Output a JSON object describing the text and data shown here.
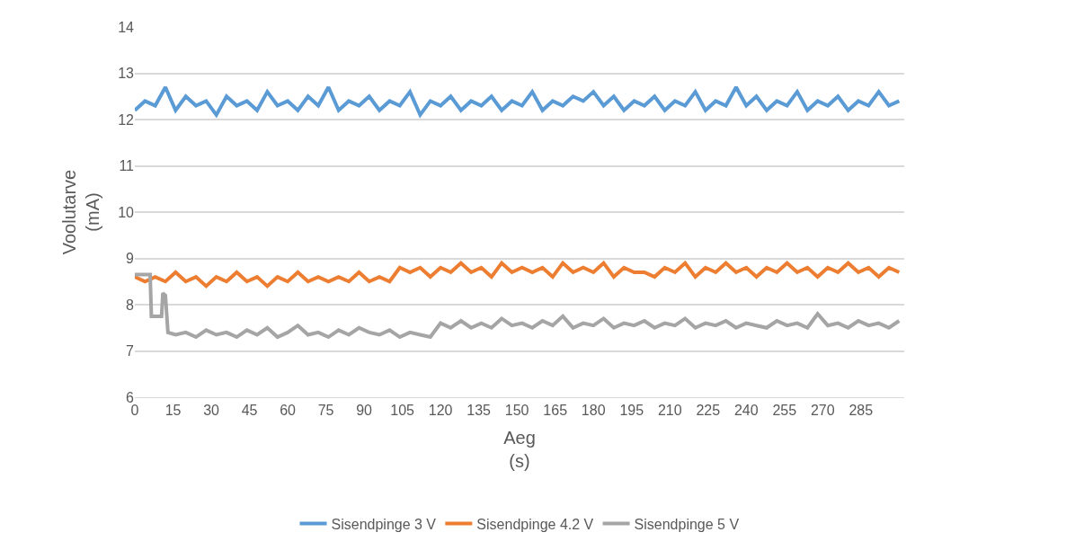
{
  "chart_data": {
    "type": "line",
    "xlabel": "Aeg\n(s)",
    "ylabel": "Voolutarve\n(mA)",
    "x": [
      0,
      4,
      8,
      12,
      16,
      20,
      24,
      28,
      32,
      36,
      40,
      44,
      48,
      52,
      56,
      60,
      64,
      68,
      72,
      76,
      80,
      84,
      88,
      92,
      96,
      100,
      104,
      108,
      112,
      116,
      120,
      124,
      128,
      132,
      136,
      140,
      144,
      148,
      152,
      156,
      160,
      164,
      168,
      172,
      176,
      180,
      184,
      188,
      192,
      196,
      200,
      204,
      208,
      212,
      216,
      220,
      224,
      228,
      232,
      236,
      240,
      244,
      248,
      252,
      256,
      260,
      264,
      268,
      272,
      276,
      280,
      284,
      288,
      292,
      296,
      300
    ],
    "xlim": [
      0,
      302
    ],
    "xticks": [
      0,
      15,
      30,
      45,
      60,
      75,
      90,
      105,
      120,
      135,
      150,
      165,
      180,
      195,
      210,
      225,
      240,
      255,
      270,
      285
    ],
    "ylim": [
      6,
      14
    ],
    "yticks": [
      6,
      7,
      8,
      9,
      10,
      11,
      12,
      13,
      14
    ],
    "grid": "y",
    "legend": "bottom",
    "marker": "none",
    "line_style": "solid",
    "series": [
      {
        "name": "Sisendpinge 3 V",
        "color": "#5b9bd5",
        "values": [
          12.2,
          12.4,
          12.3,
          12.7,
          12.2,
          12.5,
          12.3,
          12.4,
          12.1,
          12.5,
          12.3,
          12.4,
          12.2,
          12.6,
          12.3,
          12.4,
          12.2,
          12.5,
          12.3,
          12.7,
          12.2,
          12.4,
          12.3,
          12.5,
          12.2,
          12.4,
          12.3,
          12.6,
          12.1,
          12.4,
          12.3,
          12.5,
          12.2,
          12.4,
          12.3,
          12.5,
          12.2,
          12.4,
          12.3,
          12.6,
          12.2,
          12.4,
          12.3,
          12.5,
          12.4,
          12.6,
          12.3,
          12.5,
          12.2,
          12.4,
          12.3,
          12.5,
          12.2,
          12.4,
          12.3,
          12.6,
          12.2,
          12.4,
          12.3,
          12.7,
          12.3,
          12.5,
          12.2,
          12.4,
          12.3,
          12.6,
          12.2,
          12.4,
          12.3,
          12.5,
          12.2,
          12.4,
          12.3,
          12.6,
          12.3,
          12.4
        ]
      },
      {
        "name": "Sisendpinge 4.2 V",
        "color": "#ed7d31",
        "values": [
          8.6,
          8.5,
          8.6,
          8.5,
          8.7,
          8.5,
          8.6,
          8.4,
          8.6,
          8.5,
          8.7,
          8.5,
          8.6,
          8.4,
          8.6,
          8.5,
          8.7,
          8.5,
          8.6,
          8.5,
          8.6,
          8.5,
          8.7,
          8.5,
          8.6,
          8.5,
          8.8,
          8.7,
          8.8,
          8.6,
          8.8,
          8.7,
          8.9,
          8.7,
          8.8,
          8.6,
          8.9,
          8.7,
          8.8,
          8.7,
          8.8,
          8.6,
          8.9,
          8.7,
          8.8,
          8.7,
          8.9,
          8.6,
          8.8,
          8.7,
          8.7,
          8.6,
          8.8,
          8.7,
          8.9,
          8.6,
          8.8,
          8.7,
          8.9,
          8.7,
          8.8,
          8.6,
          8.8,
          8.7,
          8.9,
          8.7,
          8.8,
          8.6,
          8.8,
          8.7,
          8.9,
          8.7,
          8.8,
          8.6,
          8.8,
          8.7
        ]
      },
      {
        "name": "Sisendpinge 5 V",
        "color": "#a5a5a5",
        "x": [
          0,
          6,
          6.5,
          10.5,
          11,
          12,
          13,
          16,
          20,
          24,
          28,
          32,
          36,
          40,
          44,
          48,
          52,
          56,
          60,
          64,
          68,
          72,
          76,
          80,
          84,
          88,
          92,
          96,
          100,
          104,
          108,
          112,
          116,
          120,
          124,
          128,
          132,
          136,
          140,
          144,
          148,
          152,
          156,
          160,
          164,
          168,
          172,
          176,
          180,
          184,
          188,
          192,
          196,
          200,
          204,
          208,
          212,
          216,
          220,
          224,
          228,
          232,
          236,
          240,
          244,
          248,
          252,
          256,
          260,
          264,
          268,
          272,
          276,
          280,
          284,
          288,
          292,
          296,
          300
        ],
        "values": [
          8.65,
          8.65,
          7.75,
          7.75,
          8.25,
          8.2,
          7.4,
          7.35,
          7.4,
          7.3,
          7.45,
          7.35,
          7.4,
          7.3,
          7.45,
          7.35,
          7.5,
          7.3,
          7.4,
          7.55,
          7.35,
          7.4,
          7.3,
          7.45,
          7.35,
          7.5,
          7.4,
          7.35,
          7.45,
          7.3,
          7.4,
          7.35,
          7.3,
          7.6,
          7.5,
          7.65,
          7.5,
          7.6,
          7.5,
          7.7,
          7.55,
          7.6,
          7.5,
          7.65,
          7.55,
          7.75,
          7.5,
          7.6,
          7.55,
          7.7,
          7.5,
          7.6,
          7.55,
          7.65,
          7.5,
          7.6,
          7.55,
          7.7,
          7.5,
          7.6,
          7.55,
          7.65,
          7.5,
          7.6,
          7.55,
          7.5,
          7.65,
          7.55,
          7.6,
          7.5,
          7.8,
          7.55,
          7.6,
          7.5,
          7.65,
          7.55,
          7.6,
          7.5,
          7.65
        ]
      }
    ]
  }
}
